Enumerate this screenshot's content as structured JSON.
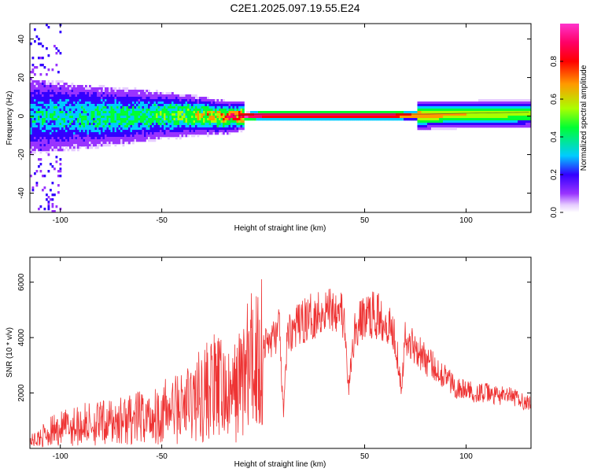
{
  "title": "C2E1.2025.097.19.55.E24",
  "chart_data": [
    {
      "type": "heatmap",
      "xlabel": "Height of straight line (km)",
      "ylabel": "Frequency (Hz)",
      "xlim": [
        -115,
        132
      ],
      "ylim": [
        -50,
        48
      ],
      "x_ticks": [
        -100,
        -50,
        50,
        100
      ],
      "y_ticks": [
        -40,
        -20,
        0,
        20,
        40
      ],
      "colorbar": {
        "label": "Normalized spectral amplitude",
        "range": [
          0,
          1
        ],
        "ticks": [
          0.0,
          0.2,
          0.4,
          0.6,
          0.8
        ],
        "colors": [
          "#ffffff",
          "#e6ccff",
          "#9933ff",
          "#3300ff",
          "#00ccff",
          "#00ff33",
          "#aaff00",
          "#ff9900",
          "#ff0000",
          "#ff0066",
          "#ff33cc"
        ]
      },
      "ridge": {
        "description_points_x": [
          -110,
          -90,
          -70,
          -50,
          -35,
          -20,
          -10,
          0,
          10,
          20,
          40,
          60,
          80,
          100,
          132
        ],
        "description_points_y": [
          0.5,
          0.5,
          0.5,
          1,
          1,
          0,
          0.5,
          1,
          1,
          1,
          1,
          1,
          1,
          1.5,
          2
        ],
        "peak_amplitude": [
          0.3,
          0.35,
          0.4,
          0.45,
          0.55,
          0.7,
          0.95,
          0.95,
          0.95,
          0.95,
          0.95,
          0.95,
          0.6,
          0.55,
          0.5
        ]
      }
    },
    {
      "type": "line",
      "xlabel": "Height of straight line (km)",
      "ylabel": "SNR (10 * v/v)",
      "xlim": [
        -115,
        132
      ],
      "ylim": [
        0,
        6900
      ],
      "x_ticks": [
        -100,
        -50,
        50,
        100
      ],
      "y_ticks": [
        2000,
        4000,
        6000
      ],
      "color": "#ee3333",
      "series": [
        {
          "x": [
            -115,
            -110,
            -105,
            -100,
            -95,
            -90,
            -85,
            -80,
            -75,
            -70,
            -65,
            -60,
            -55,
            -50,
            -45,
            -40,
            -35,
            -30,
            -25,
            -20,
            -17,
            -15,
            -12,
            -10,
            -5,
            0,
            5,
            8,
            10,
            12,
            15,
            20,
            25,
            30,
            35,
            38,
            40,
            42,
            45,
            50,
            55,
            60,
            65,
            68,
            70,
            75,
            80,
            85,
            90,
            95,
            100,
            105,
            110,
            115,
            120,
            125,
            132
          ],
          "y": [
            250,
            400,
            600,
            700,
            800,
            850,
            900,
            900,
            950,
            1000,
            1050,
            1100,
            1150,
            1300,
            1400,
            1500,
            1700,
            2000,
            2200,
            2100,
            1800,
            1900,
            2300,
            2700,
            3100,
            3700,
            4000,
            4300,
            1200,
            4200,
            4300,
            4600,
            4800,
            5000,
            5100,
            5200,
            4400,
            2100,
            4200,
            4800,
            4800,
            4700,
            4100,
            2300,
            3900,
            3700,
            3200,
            2900,
            2600,
            2200,
            2100,
            2000,
            2000,
            1900,
            1900,
            1800,
            1600
          ]
        }
      ]
    }
  ]
}
